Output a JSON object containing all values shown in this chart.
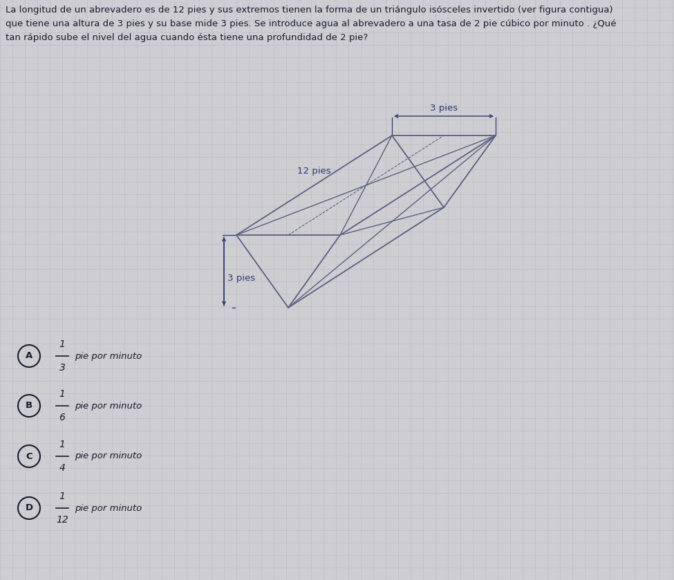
{
  "question_text_line1": "La longitud de un abrevadero es de 12 pies y sus extremos tienen la forma de un triángulo isósceles invertido (ver figura contigua)",
  "question_text_line2": "que tiene una altura de 3 pies y su base mide 3 pies. Se introduce agua al abrevadero a una tasa de 2 pie cúbico por minuto . ¿Qué",
  "question_text_line3": "tan rápido sube el nivel del agua cuando ésta tiene una profundidad de 2 pie?",
  "bg_color": "#cdcdd2",
  "line_color": "#5a6080",
  "text_color": "#1a1a2e",
  "label_color": "#2a3a6e",
  "grid_color": "#b8b8c0",
  "options": [
    {
      "letter": "A",
      "fraction_num": "1",
      "fraction_den": "3",
      "text": "pie por minuto"
    },
    {
      "letter": "B",
      "fraction_num": "1",
      "fraction_den": "6",
      "text": "pie por minuto"
    },
    {
      "letter": "C",
      "fraction_num": "1",
      "fraction_den": "4",
      "text": "pie por minuto"
    },
    {
      "letter": "D",
      "fraction_num": "1",
      "fraction_den": "12",
      "text": "pie por minuto"
    }
  ],
  "dim_3pies_top_label": "3 pies",
  "dim_12pies_label": "12 pies",
  "dim_3pies_left_label": "3 pies",
  "fig_width": 9.75,
  "fig_height": 8.39,
  "dpi": 100
}
